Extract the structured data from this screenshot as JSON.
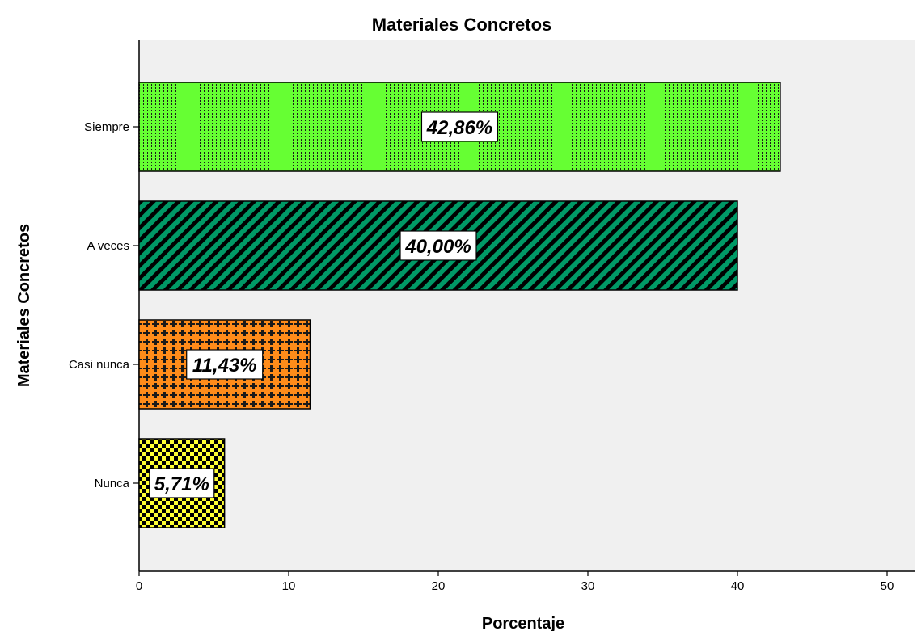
{
  "chart_data": {
    "type": "bar",
    "orientation": "horizontal",
    "title": "Materiales Concretos",
    "xlabel": "Porcentaje",
    "ylabel": "Materiales Concretos",
    "xlim": [
      0,
      52
    ],
    "xticks": [
      0,
      10,
      20,
      30,
      40,
      50
    ],
    "grid": false,
    "categories": [
      "Siempre",
      "A veces",
      "Casi nunca",
      "Nunca"
    ],
    "values": [
      42.86,
      40.0,
      11.43,
      5.71
    ],
    "value_labels": [
      "42,86%",
      "40,00%",
      "11,43%",
      "5,71%"
    ],
    "bar_colors": [
      "#66ff33",
      "#009966",
      "#ff8c1a",
      "#ffff33"
    ],
    "bar_patterns": [
      "dotted-vertical",
      "diagonal-stripes",
      "crosses",
      "checkerboard"
    ],
    "plot_background": "#f0f0f0"
  }
}
